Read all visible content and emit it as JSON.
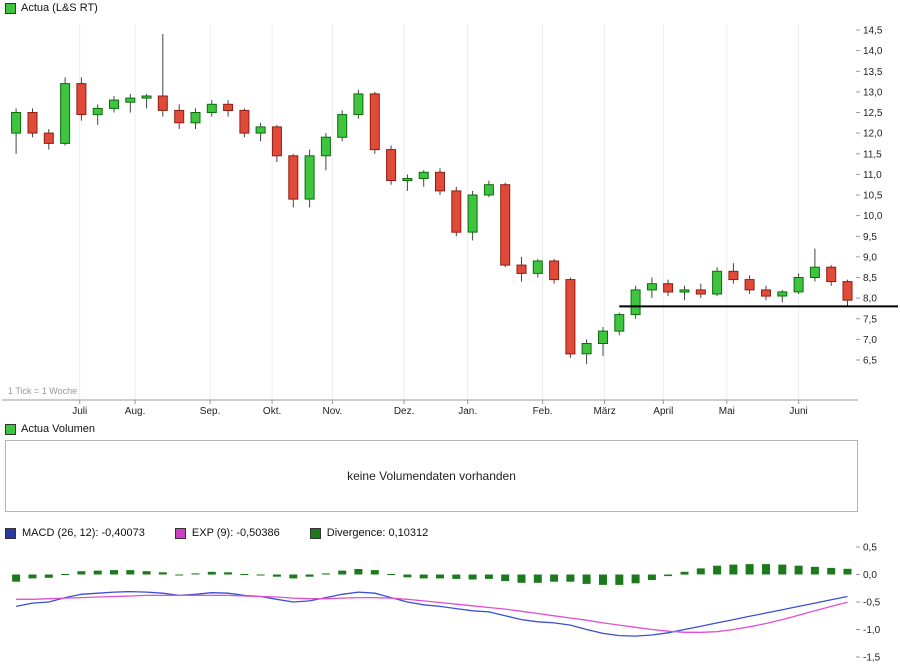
{
  "header_legend": {
    "label": "Actua (L&S RT)",
    "color": "#3ec43e"
  },
  "volume_panel": {
    "legend": "Actua Volumen",
    "color": "#3ec43e",
    "message": "keine Volumendaten vorhanden"
  },
  "macd_legend": {
    "items": [
      {
        "label": "MACD (26, 12): -0,40073",
        "color": "#2a3a9e"
      },
      {
        "label": "EXP (9): -0,50386",
        "color": "#cc3fc4"
      },
      {
        "label": "Divergence: 0,10312",
        "color": "#1c7a1c"
      }
    ]
  },
  "chart_data": [
    {
      "type": "candlestick",
      "title": "Actua (L&S RT)",
      "tick_note": "1 Tick = 1 Woche",
      "ylim": [
        6.5,
        14.5
      ],
      "y_ticks": [
        {
          "value": 14.5,
          "label": "14,5"
        },
        {
          "value": 14.0,
          "label": "14,0"
        },
        {
          "value": 13.5,
          "label": "13,5"
        },
        {
          "value": 13.0,
          "label": "13,0"
        },
        {
          "value": 12.5,
          "label": "12,5"
        },
        {
          "value": 12.0,
          "label": "12,0"
        },
        {
          "value": 11.5,
          "label": "11,5"
        },
        {
          "value": 11.0,
          "label": "11,0"
        },
        {
          "value": 10.5,
          "label": "10,5"
        },
        {
          "value": 10.0,
          "label": "10,0"
        },
        {
          "value": 9.5,
          "label": "9,5"
        },
        {
          "value": 9.0,
          "label": "9,0"
        },
        {
          "value": 8.5,
          "label": "8,5"
        },
        {
          "value": 8.0,
          "label": "8,0"
        },
        {
          "value": 7.5,
          "label": "7,5"
        },
        {
          "value": 7.0,
          "label": "7,0"
        },
        {
          "value": 6.5,
          "label": "6,5"
        }
      ],
      "months": [
        {
          "label": "Juli",
          "index": 3.9
        },
        {
          "label": "Aug.",
          "index": 7.3
        },
        {
          "label": "Sep.",
          "index": 11.9
        },
        {
          "label": "Okt.",
          "index": 15.7
        },
        {
          "label": "Nov.",
          "index": 19.4
        },
        {
          "label": "Dez.",
          "index": 23.8
        },
        {
          "label": "Jan.",
          "index": 27.7
        },
        {
          "label": "Feb.",
          "index": 32.3
        },
        {
          "label": "März",
          "index": 36.1
        },
        {
          "label": "April",
          "index": 39.7
        },
        {
          "label": "Mai",
          "index": 43.6
        },
        {
          "label": "Juni",
          "index": 48.0
        }
      ],
      "candles": [
        [
          12.0,
          12.6,
          11.5,
          12.5
        ],
        [
          12.5,
          12.6,
          11.9,
          12.0
        ],
        [
          12.0,
          12.1,
          11.6,
          11.75
        ],
        [
          11.75,
          13.35,
          11.7,
          13.2
        ],
        [
          13.2,
          13.35,
          12.3,
          12.45
        ],
        [
          12.45,
          12.7,
          12.2,
          12.6
        ],
        [
          12.6,
          12.9,
          12.5,
          12.8
        ],
        [
          12.75,
          12.95,
          12.5,
          12.85
        ],
        [
          12.85,
          12.95,
          12.6,
          12.9
        ],
        [
          12.9,
          14.4,
          12.4,
          12.55
        ],
        [
          12.55,
          12.7,
          12.1,
          12.25
        ],
        [
          12.25,
          12.6,
          12.1,
          12.5
        ],
        [
          12.5,
          12.8,
          12.4,
          12.7
        ],
        [
          12.7,
          12.8,
          12.4,
          12.55
        ],
        [
          12.55,
          12.6,
          11.9,
          12.0
        ],
        [
          12.0,
          12.25,
          11.8,
          12.15
        ],
        [
          12.15,
          12.2,
          11.3,
          11.45
        ],
        [
          11.45,
          11.5,
          10.2,
          10.4
        ],
        [
          10.4,
          11.6,
          10.2,
          11.45
        ],
        [
          11.45,
          12.0,
          11.1,
          11.9
        ],
        [
          11.9,
          12.55,
          11.8,
          12.45
        ],
        [
          12.45,
          13.05,
          12.35,
          12.95
        ],
        [
          12.95,
          13.0,
          11.5,
          11.6
        ],
        [
          11.6,
          11.7,
          10.75,
          10.85
        ],
        [
          10.85,
          11.0,
          10.6,
          10.9
        ],
        [
          10.9,
          11.1,
          10.7,
          11.05
        ],
        [
          11.05,
          11.15,
          10.5,
          10.6
        ],
        [
          10.6,
          10.7,
          9.5,
          9.6
        ],
        [
          9.6,
          10.6,
          9.4,
          10.5
        ],
        [
          10.5,
          10.85,
          10.45,
          10.75
        ],
        [
          10.75,
          10.8,
          8.75,
          8.8
        ],
        [
          8.8,
          9.0,
          8.4,
          8.6
        ],
        [
          8.6,
          8.95,
          8.5,
          8.9
        ],
        [
          8.9,
          8.95,
          8.35,
          8.45
        ],
        [
          8.45,
          8.5,
          6.55,
          6.65
        ],
        [
          6.65,
          7.0,
          6.4,
          6.9
        ],
        [
          6.9,
          7.3,
          6.6,
          7.2
        ],
        [
          7.2,
          7.65,
          7.1,
          7.6
        ],
        [
          7.6,
          8.3,
          7.5,
          8.2
        ],
        [
          8.2,
          8.5,
          8.0,
          8.35
        ],
        [
          8.35,
          8.45,
          8.05,
          8.15
        ],
        [
          8.15,
          8.3,
          7.95,
          8.2
        ],
        [
          8.2,
          8.35,
          8.0,
          8.1
        ],
        [
          8.1,
          8.75,
          8.05,
          8.65
        ],
        [
          8.65,
          8.85,
          8.35,
          8.45
        ],
        [
          8.45,
          8.55,
          8.1,
          8.2
        ],
        [
          8.2,
          8.3,
          7.95,
          8.05
        ],
        [
          8.05,
          8.2,
          7.9,
          8.15
        ],
        [
          8.15,
          8.6,
          8.1,
          8.5
        ],
        [
          8.5,
          9.2,
          8.4,
          8.75
        ],
        [
          8.75,
          8.8,
          8.3,
          8.4
        ],
        [
          8.4,
          8.45,
          7.8,
          7.95
        ]
      ],
      "support_line": {
        "value": 7.8,
        "from_index": 37,
        "color": "#000000"
      },
      "colors": {
        "up_fill": "#3ec43e",
        "up_stroke": "#0b6e0b",
        "down_fill": "#e14a38",
        "down_stroke": "#8f1d12",
        "wick": "#444444"
      }
    },
    {
      "type": "macd",
      "ylim": [
        -1.5,
        0.5
      ],
      "y_ticks": [
        {
          "value": 0.5,
          "label": "0,5"
        },
        {
          "value": 0.0,
          "label": "0,0"
        },
        {
          "value": -0.5,
          "label": "-0,5"
        },
        {
          "value": -1.0,
          "label": "-1,0"
        },
        {
          "value": -1.5,
          "label": "-1,5"
        }
      ],
      "series": [
        {
          "name": "MACD",
          "type": "line",
          "color": "#3a4fd0",
          "values": [
            -0.58,
            -0.52,
            -0.5,
            -0.42,
            -0.36,
            -0.34,
            -0.32,
            -0.31,
            -0.32,
            -0.34,
            -0.38,
            -0.36,
            -0.33,
            -0.34,
            -0.38,
            -0.4,
            -0.45,
            -0.5,
            -0.48,
            -0.42,
            -0.36,
            -0.32,
            -0.34,
            -0.42,
            -0.5,
            -0.55,
            -0.58,
            -0.62,
            -0.66,
            -0.68,
            -0.75,
            -0.82,
            -0.86,
            -0.88,
            -0.92,
            -1.0,
            -1.07,
            -1.11,
            -1.12,
            -1.1,
            -1.06,
            -1.0,
            -0.94,
            -0.88,
            -0.82,
            -0.76,
            -0.7,
            -0.64,
            -0.58,
            -0.52,
            -0.46,
            -0.40073
          ]
        },
        {
          "name": "EXP",
          "type": "line",
          "color": "#e14fd2",
          "values": [
            -0.45,
            -0.45,
            -0.44,
            -0.43,
            -0.42,
            -0.41,
            -0.4,
            -0.39,
            -0.38,
            -0.38,
            -0.38,
            -0.38,
            -0.38,
            -0.38,
            -0.39,
            -0.4,
            -0.41,
            -0.43,
            -0.44,
            -0.44,
            -0.43,
            -0.42,
            -0.42,
            -0.43,
            -0.45,
            -0.48,
            -0.51,
            -0.54,
            -0.57,
            -0.6,
            -0.63,
            -0.67,
            -0.71,
            -0.75,
            -0.79,
            -0.83,
            -0.88,
            -0.92,
            -0.96,
            -1.0,
            -1.03,
            -1.05,
            -1.05,
            -1.04,
            -1.0,
            -0.95,
            -0.89,
            -0.82,
            -0.74,
            -0.66,
            -0.58,
            -0.50386
          ]
        },
        {
          "name": "Divergence",
          "type": "bar",
          "color": "#1c7a1c",
          "values": [
            -0.13,
            -0.07,
            -0.06,
            0.01,
            0.06,
            0.07,
            0.08,
            0.08,
            0.06,
            0.04,
            0.0,
            0.02,
            0.05,
            0.04,
            0.01,
            0.0,
            -0.04,
            -0.07,
            -0.04,
            0.02,
            0.07,
            0.1,
            0.08,
            0.01,
            -0.05,
            -0.07,
            -0.07,
            -0.08,
            -0.09,
            -0.08,
            -0.12,
            -0.15,
            -0.15,
            -0.13,
            -0.13,
            -0.17,
            -0.19,
            -0.19,
            -0.16,
            -0.1,
            -0.03,
            0.05,
            0.11,
            0.16,
            0.18,
            0.19,
            0.19,
            0.18,
            0.16,
            0.14,
            0.12,
            0.103
          ]
        }
      ]
    }
  ]
}
